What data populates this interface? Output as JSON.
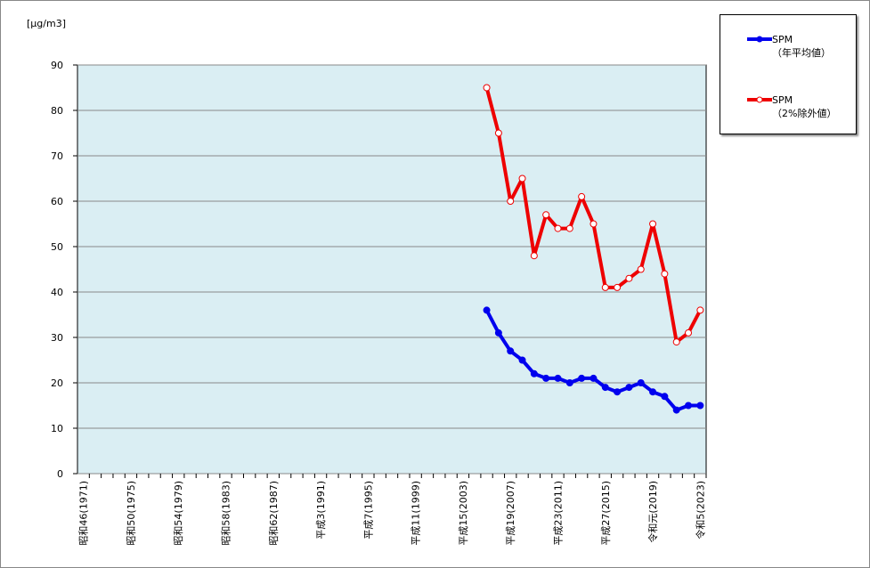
{
  "chart_data": {
    "type": "line",
    "y_label": "[μg/m3]",
    "categories": [
      "昭和46(1971)",
      null,
      null,
      null,
      "昭和50(1975)",
      null,
      null,
      null,
      "昭和54(1979)",
      null,
      null,
      null,
      "昭和58(1983)",
      null,
      null,
      null,
      "昭和62(1987)",
      null,
      null,
      null,
      "平成3(1991)",
      null,
      null,
      null,
      "平成7(1995)",
      null,
      null,
      null,
      "平成11(1999)",
      null,
      null,
      null,
      "平成15(2003)",
      null,
      null,
      null,
      "平成19(2007)",
      null,
      null,
      null,
      "平成23(2011)",
      null,
      null,
      null,
      "平成27(2015)",
      null,
      null,
      null,
      "令和元(2019)",
      null,
      null,
      null,
      "令和5(2023)"
    ],
    "series": [
      {
        "name": "SPM\n（年平均値）",
        "color": "#0000ee",
        "marker": "filled",
        "values": [
          null,
          null,
          null,
          null,
          null,
          null,
          null,
          null,
          null,
          null,
          null,
          null,
          null,
          null,
          null,
          null,
          null,
          null,
          null,
          null,
          null,
          null,
          null,
          null,
          null,
          null,
          null,
          null,
          null,
          null,
          null,
          null,
          null,
          null,
          36,
          31,
          27,
          25,
          22,
          21,
          21,
          20,
          21,
          21,
          19,
          18,
          19,
          20,
          18,
          17,
          14,
          15,
          15
        ]
      },
      {
        "name": "SPM\n（2%除外値）",
        "color": "#ee0000",
        "marker": "open",
        "values": [
          null,
          null,
          null,
          null,
          null,
          null,
          null,
          null,
          null,
          null,
          null,
          null,
          null,
          null,
          null,
          null,
          null,
          null,
          null,
          null,
          null,
          null,
          null,
          null,
          null,
          null,
          null,
          null,
          null,
          null,
          null,
          null,
          null,
          null,
          85,
          75,
          60,
          65,
          48,
          57,
          54,
          54,
          61,
          55,
          41,
          41,
          43,
          45,
          55,
          44,
          29,
          31,
          36
        ]
      }
    ],
    "ylim": [
      0,
      90
    ],
    "yticks": [
      0,
      10,
      20,
      30,
      40,
      50,
      60,
      70,
      80,
      90
    ],
    "grid": true
  }
}
